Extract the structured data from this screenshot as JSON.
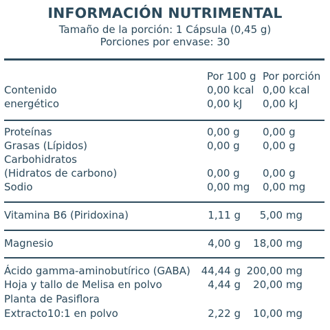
{
  "header": {
    "title": "INFORMACIÓN NUTRIMENTAL",
    "serving_size": "Tamaño de la porción: 1 Cápsula (0,45 g)",
    "servings_per_container": "Porciones por envase: 30"
  },
  "columns": {
    "per_100g": "Por 100 g",
    "per_serving": "Por porción"
  },
  "energy": {
    "label_line1": "Contenido",
    "label_line2": "energético",
    "kcal_100g": "0,00 kcal",
    "kcal_serving": "0,00 kcal",
    "kj_100g": "0,00 kJ",
    "kj_serving": "0,00 kJ"
  },
  "macros": [
    {
      "label": "Proteínas",
      "per_100g": "0,00 g",
      "per_serving": "0,00 g"
    },
    {
      "label": "Grasas (Lípidos)",
      "per_100g": "0,00 g",
      "per_serving": "0,00 g"
    },
    {
      "label": "Carbohidratos",
      "label_line2": "(Hidratos de carbono)",
      "per_100g": "0,00 g",
      "per_serving": "0,00 g"
    },
    {
      "label": "Sodio",
      "per_100g": "0,00 mg",
      "per_serving": "0,00 mg"
    }
  ],
  "vitamin": {
    "label": "Vitamina B6 (Piridoxina)",
    "per_100g": "1,11 g",
    "per_serving": "5,00 mg"
  },
  "mineral": {
    "label": "Magnesio",
    "per_100g": "4,00 g",
    "per_serving": "18,00 mg"
  },
  "others": [
    {
      "label": "Ácido gamma-aminobutírico (GABA)",
      "per_100g": "44,44 g",
      "per_serving": "200,00 mg"
    },
    {
      "label": "Hoja y tallo de Melisa en polvo",
      "per_100g": "4,44 g",
      "per_serving": "20,00 mg"
    },
    {
      "label": "Planta de Pasiflora",
      "label_line2": "Extracto10:1 en polvo",
      "per_100g": "2,22 g",
      "per_serving": "10,00 mg"
    }
  ],
  "colors": {
    "text": "#2c4a5c",
    "rule": "#2c4a5c",
    "background": "#ffffff"
  }
}
